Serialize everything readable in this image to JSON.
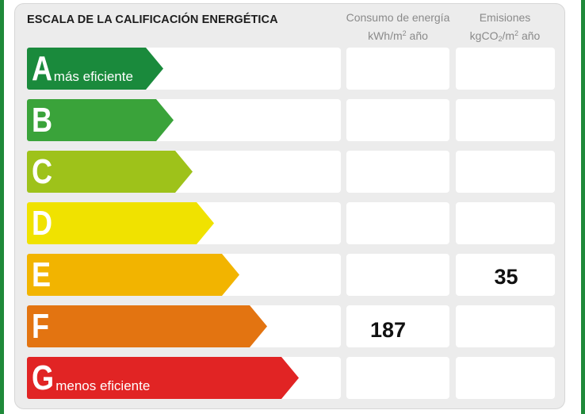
{
  "title": "ESCALA DE LA CALIFICACIÓN ENERGÉTICA",
  "columns": {
    "consumo": {
      "line1": "Consumo de energía",
      "line2_pre": "kWh/m",
      "line2_sup": "2",
      "line2_post": " año"
    },
    "emisiones": {
      "line1": "Emisiones",
      "line2_pre": "kgCO",
      "line2_sub": "2",
      "line2_mid": "/m",
      "line2_sup": "2",
      "line2_post": " año"
    }
  },
  "ratings": [
    {
      "letter": "A",
      "note": "más eficiente",
      "color": "#1a8a3c"
    },
    {
      "letter": "B",
      "note": "",
      "color": "#3aa33a"
    },
    {
      "letter": "C",
      "note": "",
      "color": "#9ec21a"
    },
    {
      "letter": "D",
      "note": "",
      "color": "#f0e200"
    },
    {
      "letter": "E",
      "note": "",
      "color": "#f2b400"
    },
    {
      "letter": "F",
      "note": "",
      "color": "#e37411"
    },
    {
      "letter": "G",
      "note": "menos eficiente",
      "color": "#e12424"
    }
  ],
  "values": {
    "consumo": {
      "rating": "F",
      "value": "187"
    },
    "emisiones": {
      "rating": "E",
      "value": "35"
    }
  },
  "frame_color": "#1f8a3a"
}
